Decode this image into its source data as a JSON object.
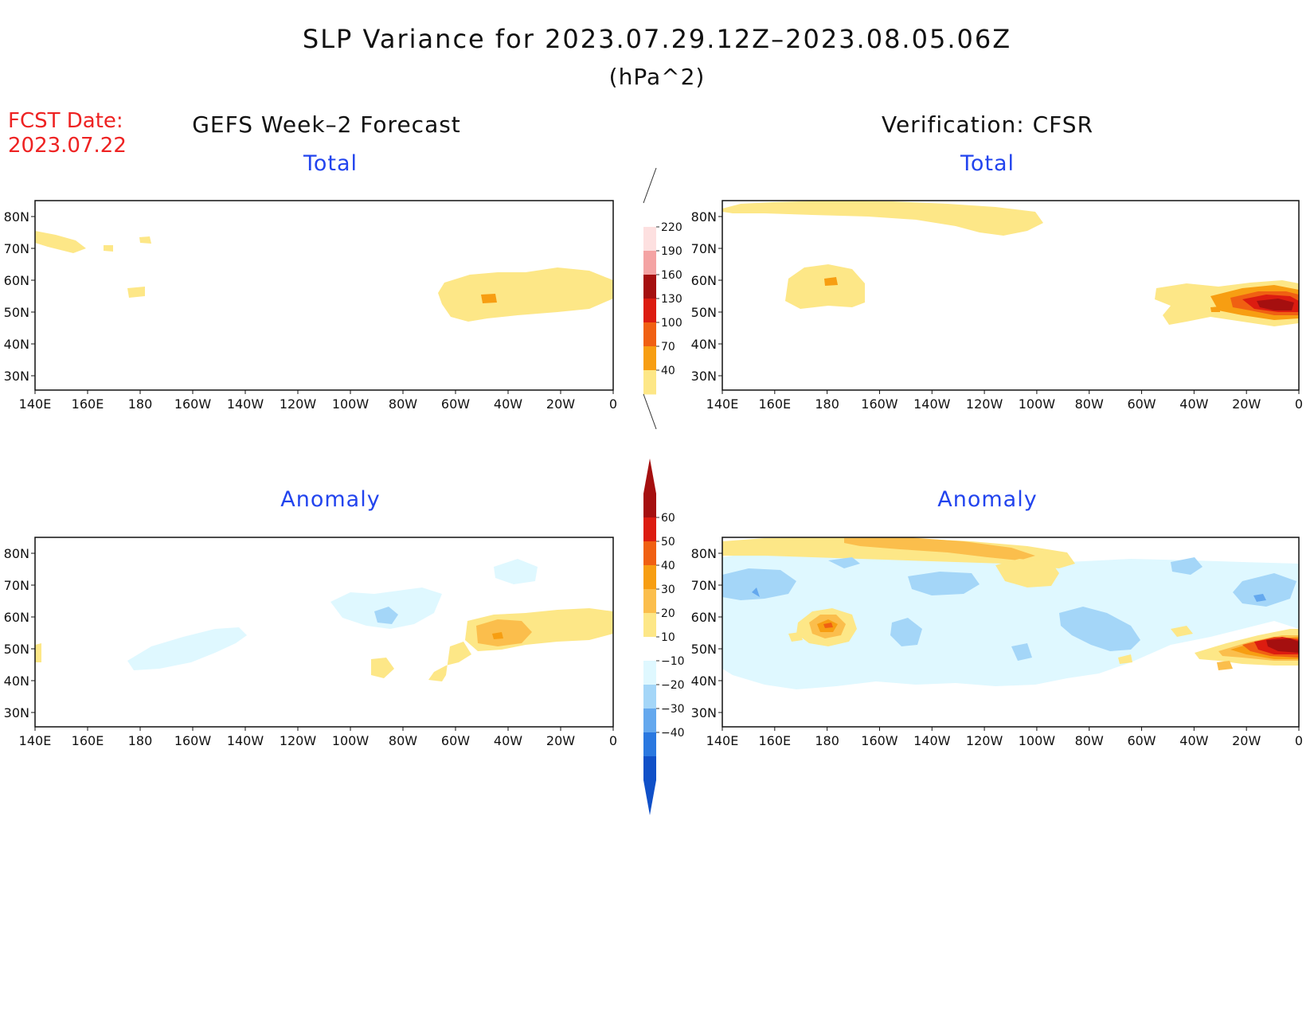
{
  "title": "SLP Variance for 2023.07.29.12Z–2023.08.05.06Z",
  "subtitle": "(hPa^2)",
  "fcst": {
    "label": "FCST Date:",
    "value": "2023.07.22"
  },
  "left_column": "GEFS Week–2 Forecast",
  "right_column": "Verification: CFSR",
  "panels": {
    "total": "Total",
    "anomaly": "Anomaly"
  },
  "axes": {
    "lon_ticks": [
      "140E",
      "160E",
      "180",
      "160W",
      "140W",
      "120W",
      "100W",
      "80W",
      "60W",
      "40W",
      "20W",
      "0"
    ],
    "lat_ticks": [
      "80N",
      "70N",
      "60N",
      "50N",
      "40N",
      "30N"
    ]
  },
  "colorbars": {
    "total": {
      "labels": [
        "220",
        "190",
        "160",
        "130",
        "100",
        "70",
        "40"
      ],
      "colors": [
        "#ffffff",
        "#fde0e0",
        "#f4a3a3",
        "#a50f0f",
        "#dc1c10",
        "#f06012",
        "#f79e12",
        "#fde787"
      ]
    },
    "anomaly": {
      "labels": [
        "60",
        "50",
        "40",
        "30",
        "20",
        "10",
        "−10",
        "−20",
        "−30",
        "−40"
      ],
      "colors": [
        "#a50f0f",
        "#dc1c10",
        "#f06012",
        "#f79e12",
        "#fbbe4c",
        "#fde787",
        "#ffffff",
        "#dff8ff",
        "#a4d6f8",
        "#64a8ee",
        "#2a78e0",
        "#1050c8"
      ]
    }
  }
}
